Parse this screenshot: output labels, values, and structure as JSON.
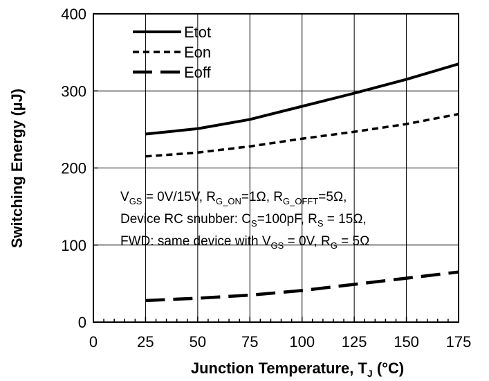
{
  "chart_data": {
    "type": "line",
    "xlabel": "Junction Temperature, T",
    "xlabel_sub": "J",
    "xlabel_unit": " (°C)",
    "ylabel": "Switching Energy (µJ)",
    "xlim": [
      0,
      175
    ],
    "ylim": [
      0,
      400
    ],
    "xticks": [
      0,
      25,
      50,
      75,
      100,
      125,
      150,
      175
    ],
    "yticks": [
      0,
      100,
      200,
      300,
      400
    ],
    "grid": true,
    "legend_position": "top-left",
    "x": [
      25,
      50,
      75,
      100,
      125,
      150,
      175
    ],
    "series": [
      {
        "name": "Etot",
        "style": "solid",
        "values": [
          244,
          251,
          263,
          280,
          297,
          315,
          335
        ]
      },
      {
        "name": "Eon",
        "style": "short-dash",
        "values": [
          215,
          220,
          228,
          238,
          247,
          257,
          270
        ]
      },
      {
        "name": "Eoff",
        "style": "long-dash",
        "values": [
          28,
          31,
          35,
          41,
          49,
          57,
          65
        ]
      }
    ],
    "annotation": {
      "line1": [
        {
          "t": "V"
        },
        {
          "t": "GS",
          "sub": true
        },
        {
          "t": " = 0V/15V, R"
        },
        {
          "t": "G_ON",
          "sub": true
        },
        {
          "t": "=1Ω, R"
        },
        {
          "t": "G_OFFT",
          "sub": true
        },
        {
          "t": "=5Ω,"
        }
      ],
      "line2": [
        {
          "t": "Device RC snubber: C"
        },
        {
          "t": "S",
          "sub": true
        },
        {
          "t": "=100pF,   R"
        },
        {
          "t": "S",
          "sub": true
        },
        {
          "t": " = 15Ω,"
        }
      ],
      "line3": [
        {
          "t": "FWD: same device with V"
        },
        {
          "t": "GS",
          "sub": true
        },
        {
          "t": " = 0V, R"
        },
        {
          "t": "G",
          "sub": true
        },
        {
          "t": " = 5Ω"
        }
      ]
    },
    "colors": {
      "line": "#000000",
      "grid": "#000000",
      "background": "#ffffff"
    }
  }
}
